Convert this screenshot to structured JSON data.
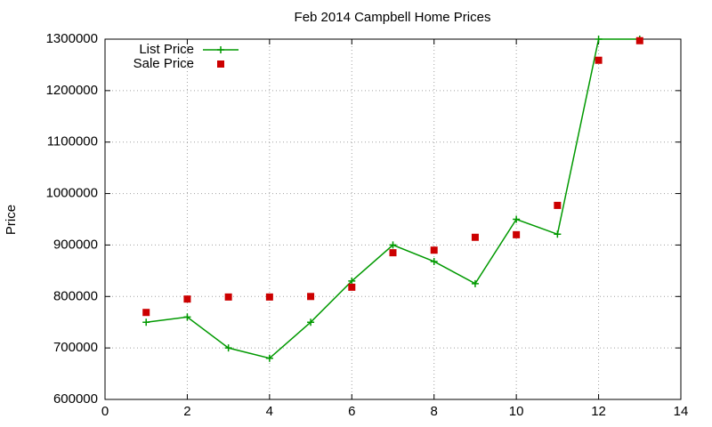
{
  "chart_data": {
    "type": "line",
    "title": "Feb 2014 Campbell Home Prices",
    "y_label": "Price",
    "x": [
      1,
      2,
      3,
      4,
      5,
      6,
      7,
      8,
      9,
      10,
      11,
      12,
      13
    ],
    "series": [
      {
        "name": "List Price",
        "color": "#009900",
        "style": "linespoints",
        "values": [
          750000,
          760000,
          700000,
          680000,
          750000,
          830000,
          900000,
          868000,
          825000,
          950000,
          921000,
          1300000,
          1300000
        ]
      },
      {
        "name": "Sale Price",
        "color": "#cc0000",
        "style": "points",
        "values": [
          769000,
          795000,
          799000,
          799000,
          800000,
          818000,
          885000,
          890000,
          915000,
          920000,
          977000,
          1259000,
          1297000
        ]
      }
    ],
    "xlim": [
      0,
      14
    ],
    "xticks": [
      0,
      2,
      4,
      6,
      8,
      10,
      12,
      14
    ],
    "ylim": [
      600000,
      1300000
    ],
    "yticks": [
      600000,
      700000,
      800000,
      900000,
      1000000,
      1100000,
      1200000,
      1300000
    ],
    "grid": true,
    "legend": "top-left"
  }
}
